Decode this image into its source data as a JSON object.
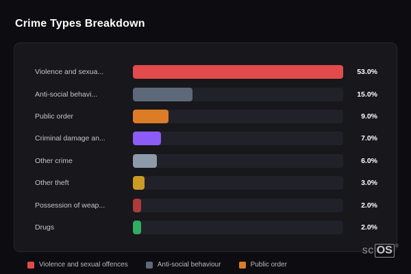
{
  "title": "Crime Types Breakdown",
  "chart_data": {
    "type": "bar",
    "orientation": "horizontal",
    "title": "Crime Types Breakdown",
    "axis_max": 53.0,
    "grid": false,
    "legend_position": "bottom",
    "categories": [
      "Violence and sexua...",
      "Anti-social behavi...",
      "Public order",
      "Criminal damage an...",
      "Other crime",
      "Other theft",
      "Possession of weap...",
      "Drugs"
    ],
    "values": [
      53.0,
      15.0,
      9.0,
      7.0,
      6.0,
      3.0,
      2.0,
      2.0
    ],
    "rows": [
      {
        "label": "Violence and sexua...",
        "value": 53.0,
        "display": "53.0%",
        "color": "#e14b4b"
      },
      {
        "label": "Anti-social behavi...",
        "value": 15.0,
        "display": "15.0%",
        "color": "#5d6979"
      },
      {
        "label": "Public order",
        "value": 9.0,
        "display": "9.0%",
        "color": "#dd7c27"
      },
      {
        "label": "Criminal damage an...",
        "value": 7.0,
        "display": "7.0%",
        "color": "#8b5cf6"
      },
      {
        "label": "Other crime",
        "value": 6.0,
        "display": "6.0%",
        "color": "#8d9aaa"
      },
      {
        "label": "Other theft",
        "value": 3.0,
        "display": "3.0%",
        "color": "#cd9a26"
      },
      {
        "label": "Possession of weap...",
        "value": 2.0,
        "display": "2.0%",
        "color": "#ad3b3b"
      },
      {
        "label": "Drugs",
        "value": 2.0,
        "display": "2.0%",
        "color": "#2fae5f"
      }
    ],
    "legend": [
      {
        "label": "Violence and sexual offences",
        "color": "#e14b4b"
      },
      {
        "label": "Anti-social behaviour",
        "color": "#5d6979"
      },
      {
        "label": "Public order",
        "color": "#dd7c27"
      }
    ]
  },
  "logo": {
    "prefix": "sc",
    "suffix": "OS",
    "reg": "®"
  }
}
